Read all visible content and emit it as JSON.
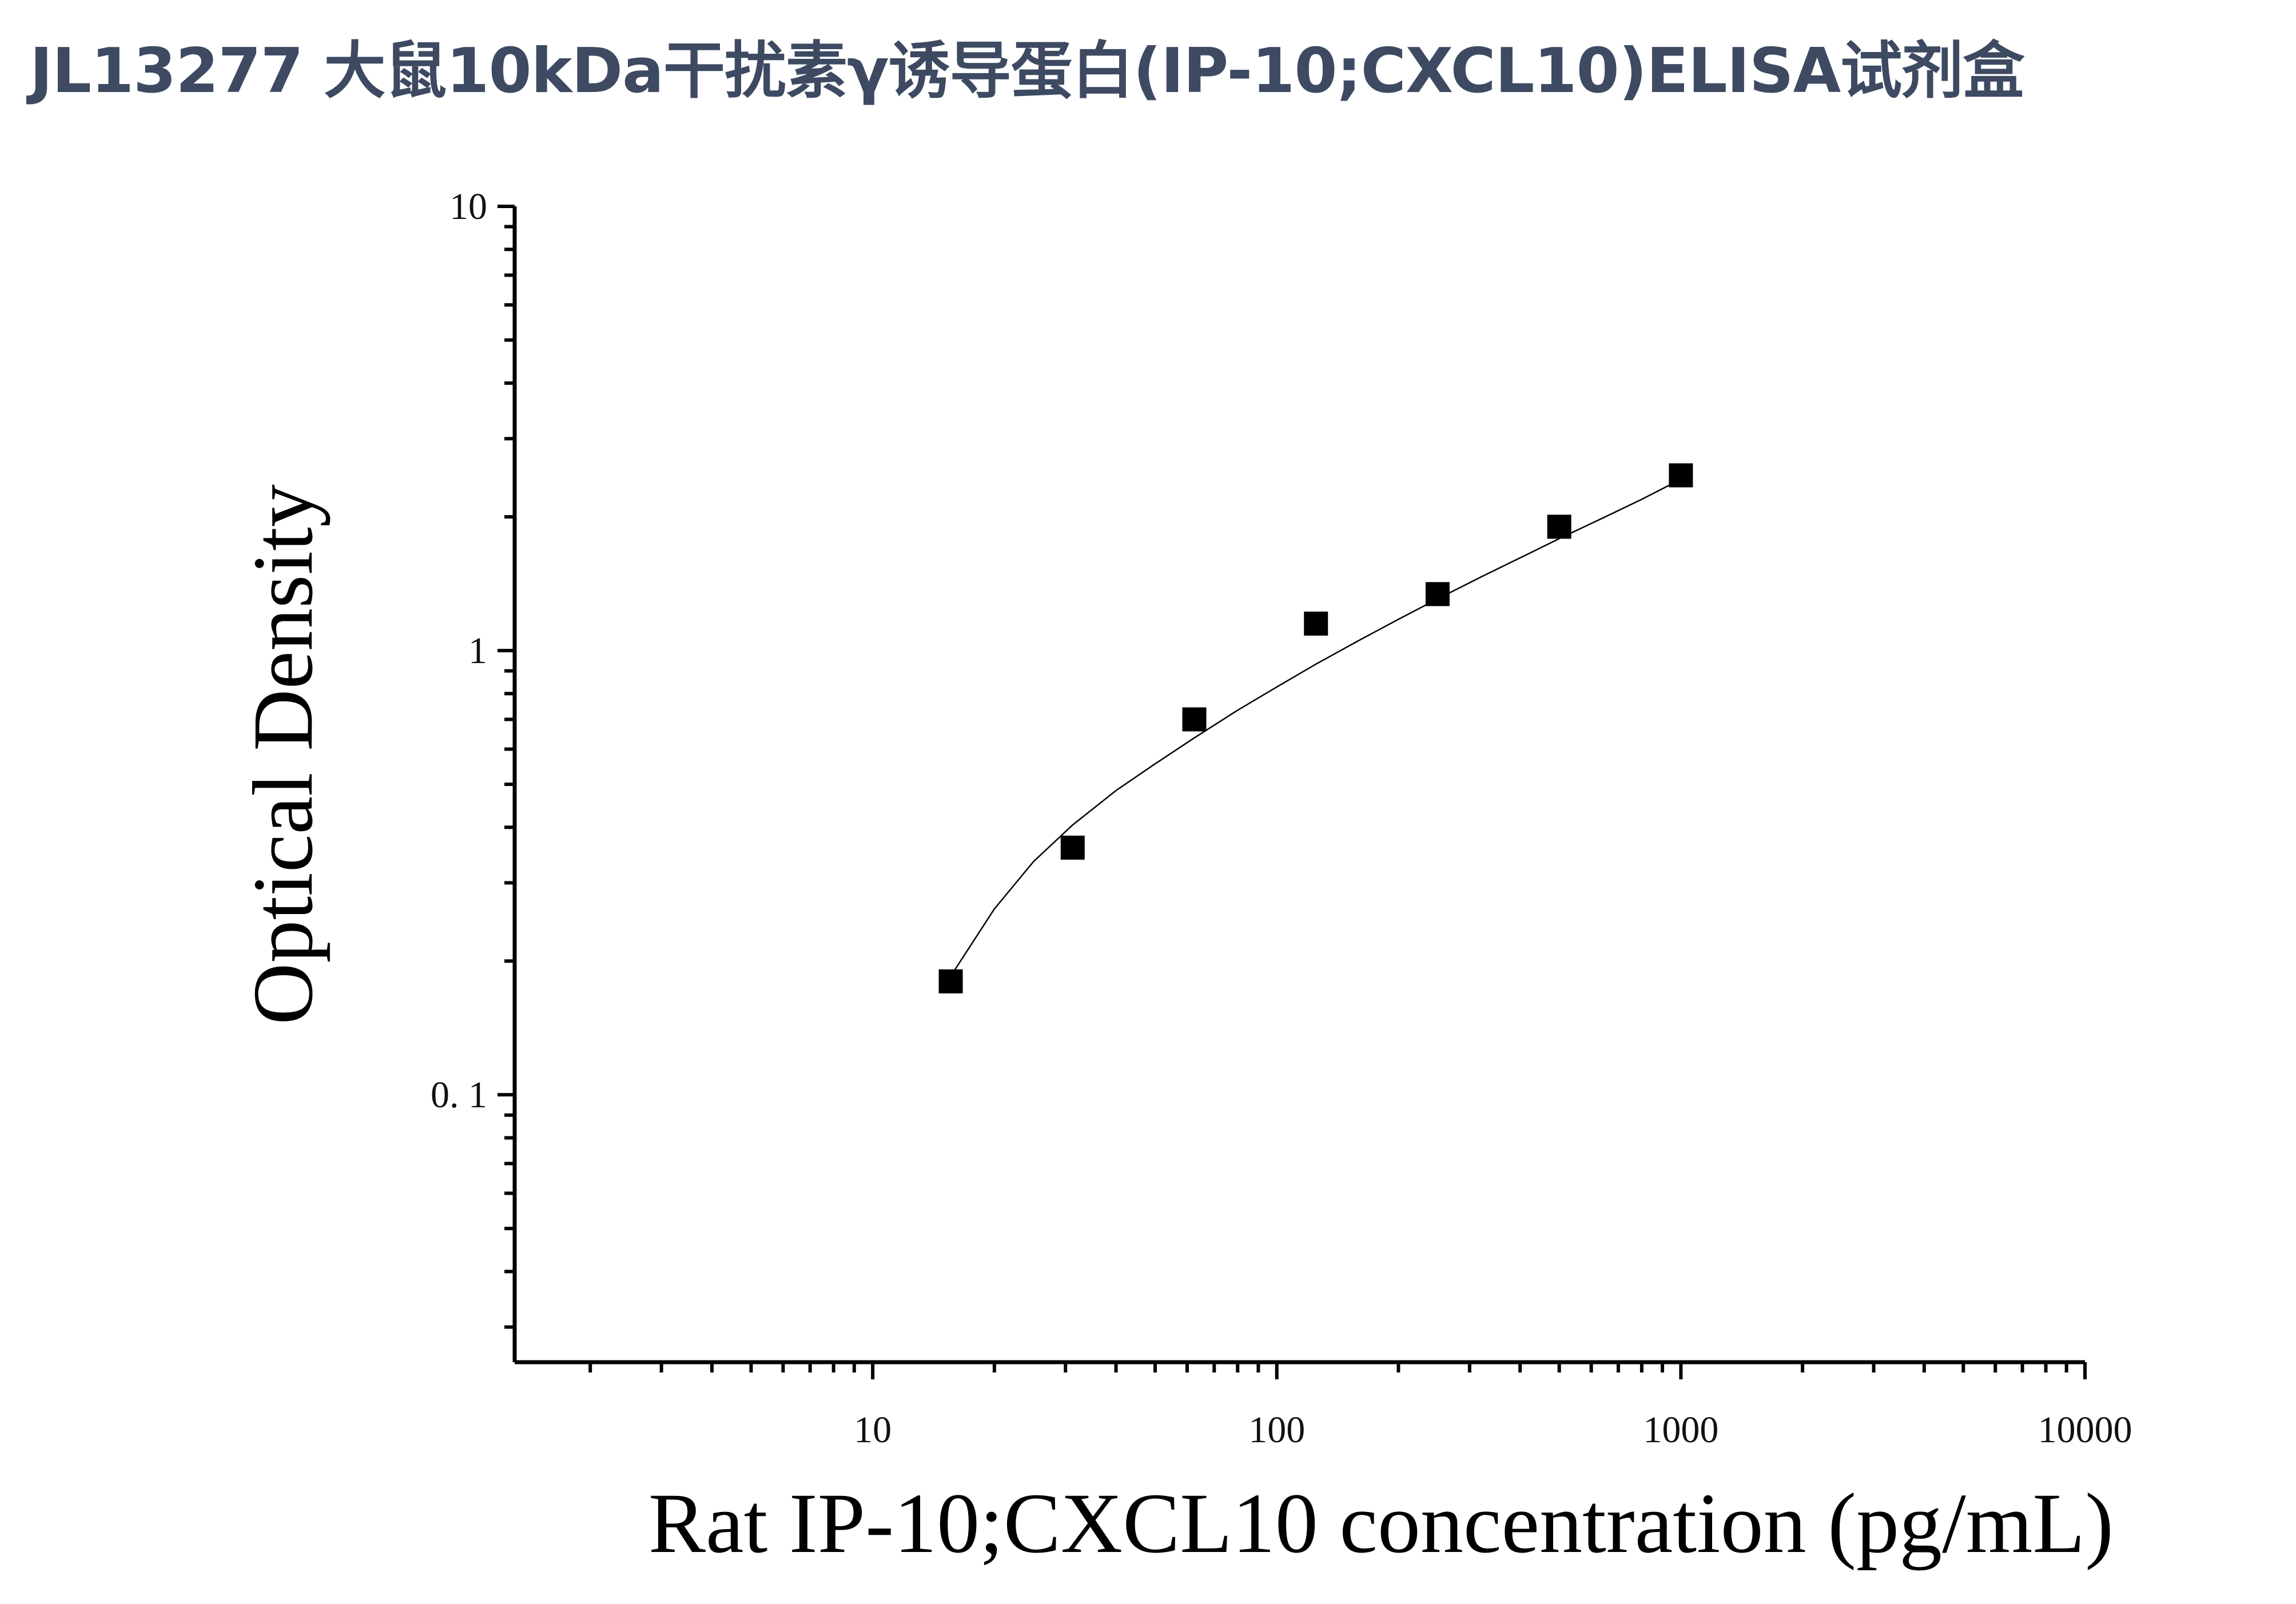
{
  "page": {
    "title": "JL13277 大鼠10kDa干扰素γ诱导蛋白(IP-10;CXCL10)ELISA试剂盒"
  },
  "colors": {
    "title": "#3d4a62",
    "axis": "#000000",
    "marker": "#000000",
    "curve": "#000000"
  },
  "chart_data": {
    "type": "scatter",
    "title": "",
    "xlabel": "Rat IP-10;CXCL10 concentration (pg/mL)",
    "ylabel": "Optical Density",
    "x_scale": "log",
    "y_scale": "log",
    "xlim": [
      1.3,
      10000
    ],
    "ylim": [
      0.025,
      10
    ],
    "x_ticks": [
      {
        "value": 10,
        "label": "10"
      },
      {
        "value": 100,
        "label": "100"
      },
      {
        "value": 1000,
        "label": "1000"
      },
      {
        "value": 10000,
        "label": "10000"
      }
    ],
    "y_ticks": [
      {
        "value": 0.1,
        "label": "0. 1"
      },
      {
        "value": 1,
        "label": "1"
      },
      {
        "value": 10,
        "label": "10"
      }
    ],
    "grid": false,
    "legend": "none",
    "marker": "square",
    "series": [
      {
        "x": [
          15.6,
          31.25,
          62.5,
          125,
          250,
          500,
          1000
        ],
        "y": [
          0.18,
          0.36,
          0.7,
          1.15,
          1.34,
          1.9,
          2.48
        ]
      }
    ],
    "fit_curve": {
      "x_range": [
        15.6,
        1000
      ],
      "points": [
        [
          15.6,
          0.185
        ],
        [
          20,
          0.262
        ],
        [
          25,
          0.335
        ],
        [
          31.25,
          0.405
        ],
        [
          40,
          0.484
        ],
        [
          50,
          0.556
        ],
        [
          62.5,
          0.636
        ],
        [
          80,
          0.734
        ],
        [
          100,
          0.828
        ],
        [
          125,
          0.932
        ],
        [
          160,
          1.055
        ],
        [
          200,
          1.176
        ],
        [
          250,
          1.307
        ],
        [
          320,
          1.464
        ],
        [
          400,
          1.617
        ],
        [
          500,
          1.786
        ],
        [
          640,
          1.987
        ],
        [
          800,
          2.19
        ],
        [
          1000,
          2.43
        ]
      ]
    }
  }
}
